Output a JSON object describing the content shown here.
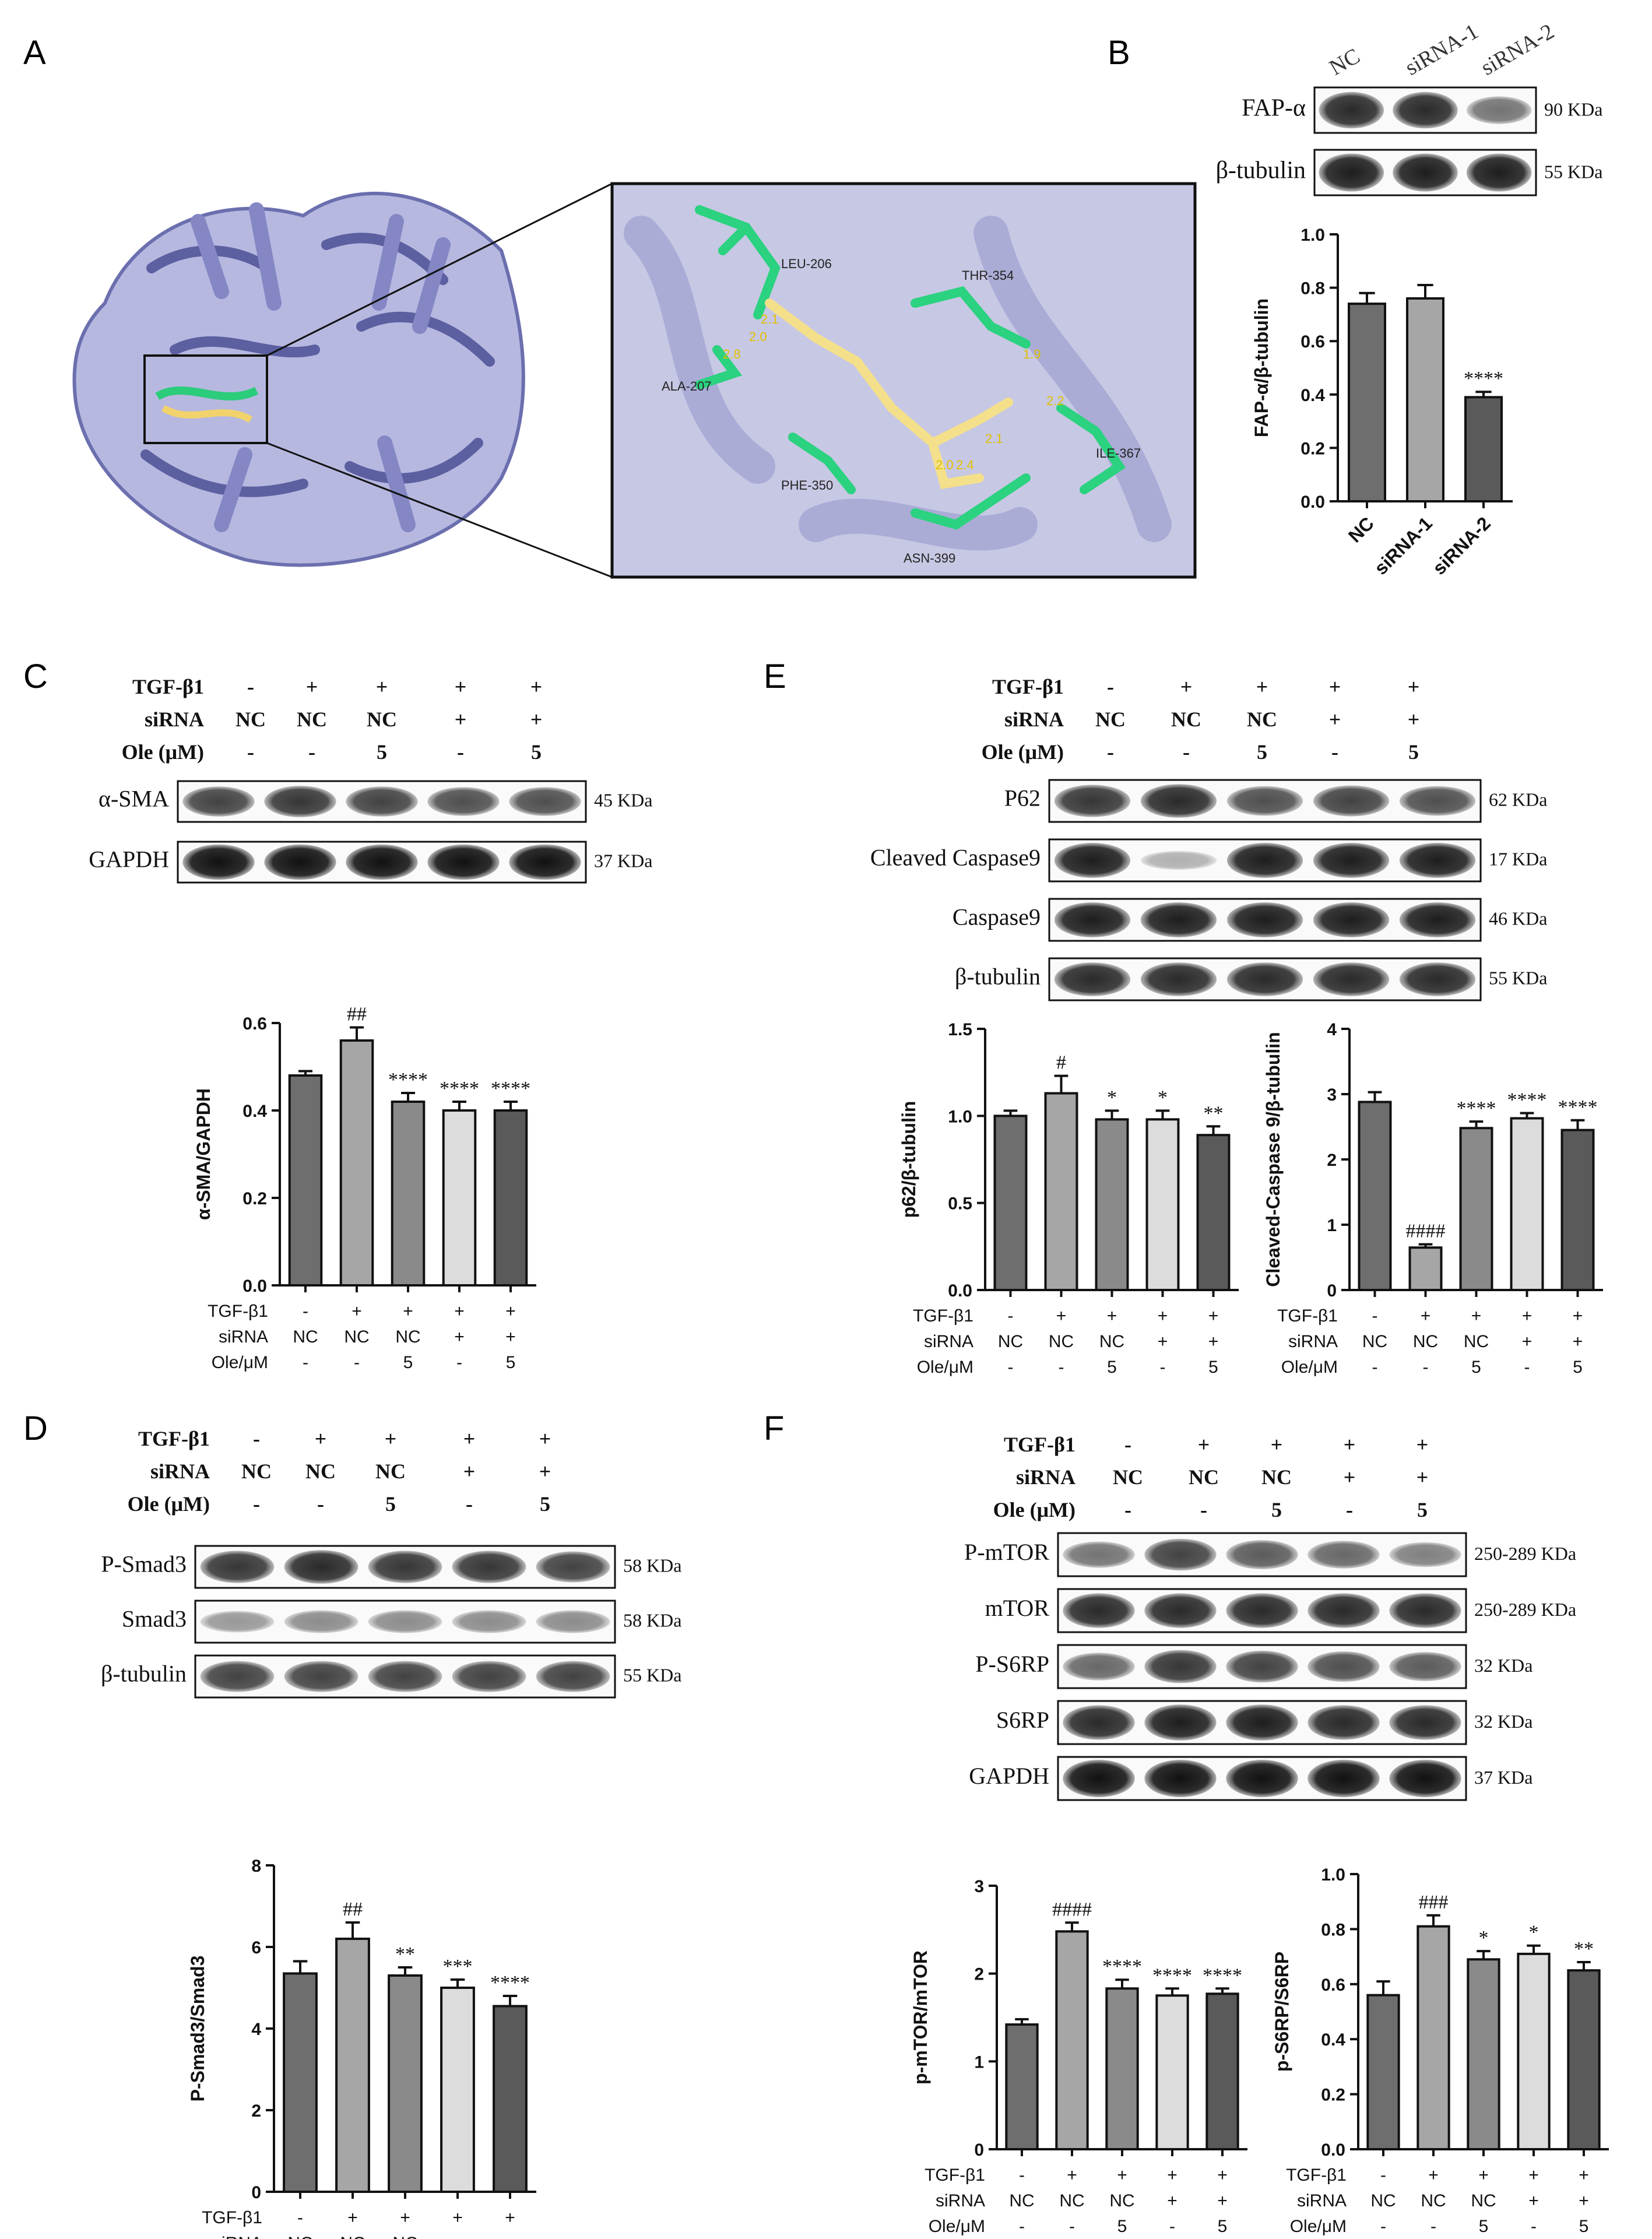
{
  "panels": {
    "A": {
      "letter": "A",
      "residues": [
        "LEU-206",
        "THR-354",
        "ALA-207",
        "ILE-367",
        "PHE-350",
        "ASN-399"
      ],
      "distances": [
        "2.1",
        "2.0",
        "2.8",
        "1.9",
        "2.2",
        "2.1",
        "2.0",
        "2.4"
      ]
    },
    "B": {
      "letter": "B",
      "lanes": [
        "NC",
        "siRNA-1",
        "siRNA-2"
      ],
      "blots": [
        {
          "name": "FAP-α",
          "kda": "90 KDa",
          "intensity": [
            0.85,
            0.85,
            0.55
          ]
        },
        {
          "name": "β-tubulin",
          "kda": "55 KDa",
          "intensity": [
            0.9,
            0.9,
            0.9
          ]
        }
      ]
    },
    "C": {
      "letter": "C",
      "treat": [
        {
          "label": "TGF-β1",
          "vals": [
            "-",
            "+",
            "+",
            "+",
            "+"
          ]
        },
        {
          "label": "siRNA",
          "vals": [
            "NC",
            "NC",
            "NC",
            "+",
            "+"
          ]
        },
        {
          "label": "Ole (μM)",
          "vals": [
            "-",
            "-",
            "5",
            "-",
            "5"
          ]
        }
      ],
      "blots": [
        {
          "name": "α-SMA",
          "kda": "45 KDa",
          "intensity": [
            0.75,
            0.8,
            0.75,
            0.7,
            0.7
          ]
        },
        {
          "name": "GAPDH",
          "kda": "37 KDa",
          "intensity": [
            0.95,
            0.95,
            0.95,
            0.95,
            0.95
          ]
        }
      ]
    },
    "D": {
      "letter": "D",
      "treat": [
        {
          "label": "TGF-β1",
          "vals": [
            "-",
            "+",
            "+",
            "+",
            "+"
          ]
        },
        {
          "label": "siRNA",
          "vals": [
            "NC",
            "NC",
            "NC",
            "+",
            "+"
          ]
        },
        {
          "label": "Ole (μM)",
          "vals": [
            "-",
            "-",
            "5",
            "-",
            "5"
          ]
        }
      ],
      "blots": [
        {
          "name": "P-Smad3",
          "kda": "58 KDa",
          "intensity": [
            0.8,
            0.85,
            0.8,
            0.8,
            0.75
          ]
        },
        {
          "name": "Smad3",
          "kda": "58 KDa",
          "intensity": [
            0.4,
            0.45,
            0.45,
            0.45,
            0.45
          ]
        },
        {
          "name": "β-tubulin",
          "kda": "55 KDa",
          "intensity": [
            0.75,
            0.75,
            0.75,
            0.75,
            0.75
          ]
        }
      ]
    },
    "E": {
      "letter": "E",
      "treat": [
        {
          "label": "TGF-β1",
          "vals": [
            "-",
            "+",
            "+",
            "+",
            "+"
          ]
        },
        {
          "label": "siRNA",
          "vals": [
            "NC",
            "NC",
            "NC",
            "+",
            "+"
          ]
        },
        {
          "label": "Ole (μM)",
          "vals": [
            "-",
            "-",
            "5",
            "-",
            "5"
          ]
        }
      ],
      "blots": [
        {
          "name": "P62",
          "kda": "62 KDa",
          "intensity": [
            0.8,
            0.85,
            0.7,
            0.75,
            0.7
          ]
        },
        {
          "name": "Cleaved Caspase9",
          "kda": "17 KDa",
          "intensity": [
            0.9,
            0.3,
            0.9,
            0.9,
            0.9
          ]
        },
        {
          "name": "Caspase9",
          "kda": "46 KDa",
          "intensity": [
            0.9,
            0.9,
            0.9,
            0.9,
            0.9
          ]
        },
        {
          "name": "β-tubulin",
          "kda": "55 KDa",
          "intensity": [
            0.85,
            0.85,
            0.85,
            0.85,
            0.85
          ]
        }
      ]
    },
    "F": {
      "letter": "F",
      "treat": [
        {
          "label": "TGF-β1",
          "vals": [
            "-",
            "+",
            "+",
            "+",
            "+"
          ]
        },
        {
          "label": "siRNA",
          "vals": [
            "NC",
            "NC",
            "NC",
            "+",
            "+"
          ]
        },
        {
          "label": "Ole (μM)",
          "vals": [
            "-",
            "-",
            "5",
            "-",
            "5"
          ]
        }
      ],
      "blots": [
        {
          "name": "P-mTOR",
          "kda": "250-289 KDa",
          "intensity": [
            0.55,
            0.75,
            0.65,
            0.6,
            0.5
          ]
        },
        {
          "name": "mTOR",
          "kda": "250-289 KDa",
          "intensity": [
            0.85,
            0.85,
            0.85,
            0.85,
            0.85
          ]
        },
        {
          "name": "P-S6RP",
          "kda": "32 KDa",
          "intensity": [
            0.6,
            0.8,
            0.75,
            0.7,
            0.65
          ]
        },
        {
          "name": "S6RP",
          "kda": "32 KDa",
          "intensity": [
            0.85,
            0.9,
            0.9,
            0.85,
            0.85
          ]
        },
        {
          "name": "GAPDH",
          "kda": "37 KDa",
          "intensity": [
            0.95,
            0.95,
            0.95,
            0.95,
            0.95
          ]
        }
      ]
    }
  },
  "bar_treat_rows": [
    {
      "label": "TGF-β1",
      "vals": [
        "-",
        "+",
        "+",
        "+",
        "+"
      ]
    },
    {
      "label": "siRNA",
      "vals": [
        "NC",
        "NC",
        "NC",
        "+",
        "+"
      ]
    },
    {
      "label": "Ole/μM",
      "vals": [
        "-",
        "-",
        "5",
        "-",
        "5"
      ]
    }
  ],
  "chart_data": [
    {
      "id": "B",
      "type": "bar",
      "ylabel": "FAP-α/β-tubulin",
      "ylim": [
        0,
        1.0
      ],
      "ticks": [
        "0.0",
        "0.2",
        "0.4",
        "0.6",
        "0.8",
        "1.0"
      ],
      "categories": [
        "NC",
        "siRNA-1",
        "siRNA-2"
      ],
      "values": [
        0.74,
        0.76,
        0.39
      ],
      "errors": [
        0.04,
        0.05,
        0.02
      ],
      "sig": [
        "",
        "",
        "****"
      ],
      "colors": [
        "#6e6e6e",
        "#a6a6a6",
        "#5a5a5a"
      ]
    },
    {
      "id": "C",
      "type": "bar",
      "ylabel": "α-SMA/GAPDH",
      "ylim": [
        0,
        0.6
      ],
      "ticks": [
        "0.0",
        "0.2",
        "0.4",
        "0.6"
      ],
      "values": [
        0.48,
        0.56,
        0.42,
        0.4,
        0.4
      ],
      "errors": [
        0.01,
        0.03,
        0.02,
        0.02,
        0.02
      ],
      "sig": [
        "",
        "##",
        "****",
        "****",
        "****"
      ],
      "colors": [
        "#6e6e6e",
        "#a6a6a6",
        "#8a8a8a",
        "#dcdcdc",
        "#5a5a5a"
      ]
    },
    {
      "id": "D",
      "type": "bar",
      "ylabel": "P-Smad3/Smad3",
      "ylim": [
        0,
        8
      ],
      "ticks": [
        "0",
        "2",
        "4",
        "6",
        "8"
      ],
      "values": [
        5.35,
        6.2,
        5.3,
        5.0,
        4.55
      ],
      "errors": [
        0.3,
        0.4,
        0.2,
        0.2,
        0.25
      ],
      "sig": [
        "",
        "##",
        "**",
        "***",
        "****"
      ],
      "colors": [
        "#6e6e6e",
        "#a6a6a6",
        "#8a8a8a",
        "#dcdcdc",
        "#5a5a5a"
      ]
    },
    {
      "id": "E1",
      "type": "bar",
      "ylabel": "p62/β-tubulin",
      "ylim": [
        0,
        1.5
      ],
      "ticks": [
        "0.0",
        "0.5",
        "1.0",
        "1.5"
      ],
      "values": [
        1.0,
        1.13,
        0.98,
        0.98,
        0.89
      ],
      "errors": [
        0.03,
        0.1,
        0.05,
        0.05,
        0.05
      ],
      "sig": [
        "",
        "#",
        "*",
        "*",
        "**"
      ],
      "colors": [
        "#6e6e6e",
        "#a6a6a6",
        "#8a8a8a",
        "#dcdcdc",
        "#5a5a5a"
      ]
    },
    {
      "id": "E2",
      "type": "bar",
      "ylabel": "Cleaved-Caspase 9/β-tubulin",
      "ylim": [
        0,
        4
      ],
      "ticks": [
        "0",
        "1",
        "2",
        "3",
        "4"
      ],
      "values": [
        2.88,
        0.65,
        2.48,
        2.63,
        2.45
      ],
      "errors": [
        0.15,
        0.05,
        0.1,
        0.08,
        0.15
      ],
      "sig": [
        "",
        "####",
        "****",
        "****",
        "****"
      ],
      "colors": [
        "#6e6e6e",
        "#a6a6a6",
        "#8a8a8a",
        "#dcdcdc",
        "#5a5a5a"
      ]
    },
    {
      "id": "F1",
      "type": "bar",
      "ylabel": "p-mTOR/mTOR",
      "ylim": [
        0,
        3
      ],
      "ticks": [
        "0",
        "1",
        "2",
        "3"
      ],
      "values": [
        1.42,
        2.48,
        1.83,
        1.75,
        1.77
      ],
      "errors": [
        0.06,
        0.1,
        0.1,
        0.08,
        0.06
      ],
      "sig": [
        "",
        "####",
        "****",
        "****",
        "****"
      ],
      "colors": [
        "#6e6e6e",
        "#a6a6a6",
        "#8a8a8a",
        "#dcdcdc",
        "#5a5a5a"
      ]
    },
    {
      "id": "F2",
      "type": "bar",
      "ylabel": "p-S6RP/S6RP",
      "ylim": [
        0,
        1.0
      ],
      "ticks": [
        "0.0",
        "0.2",
        "0.4",
        "0.6",
        "0.8",
        "1.0"
      ],
      "values": [
        0.56,
        0.81,
        0.69,
        0.71,
        0.65
      ],
      "errors": [
        0.05,
        0.04,
        0.03,
        0.03,
        0.03
      ],
      "sig": [
        "",
        "###",
        "*",
        "*",
        "**"
      ],
      "colors": [
        "#6e6e6e",
        "#a6a6a6",
        "#8a8a8a",
        "#dcdcdc",
        "#5a5a5a"
      ]
    }
  ]
}
